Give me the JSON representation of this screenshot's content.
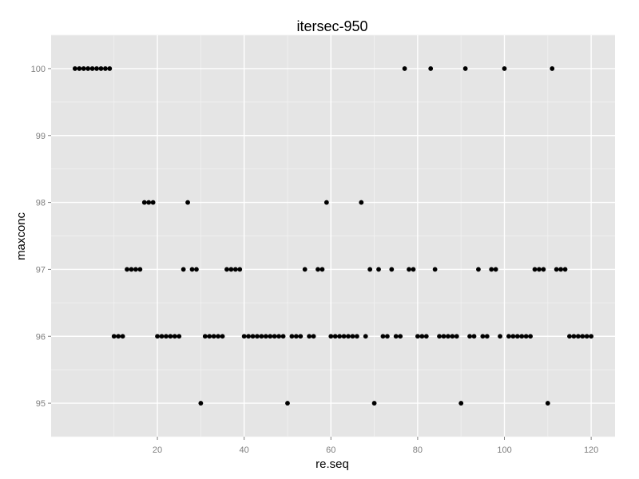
{
  "chart_data": {
    "type": "scatter",
    "title": "itersec-950",
    "xlabel": "re.seq",
    "ylabel": "maxconc",
    "xlim": [
      -4.5,
      125.5
    ],
    "ylim": [
      94.5,
      100.5
    ],
    "x_ticks": [
      20,
      40,
      60,
      80,
      100,
      120
    ],
    "y_ticks": [
      95,
      96,
      97,
      98,
      99,
      100
    ],
    "x_tick_labels": [
      "20",
      "40",
      "60",
      "80",
      "100",
      "120"
    ],
    "y_tick_labels": [
      "95",
      "96",
      "97",
      "98",
      "99",
      "100"
    ],
    "grid": true,
    "legend": "none",
    "colors": {
      "panel": "#e5e5e5",
      "grid_major": "#ffffff",
      "grid_minor": "#f2f2f2",
      "point": "#000000",
      "tick_text": "#7f7f7f"
    },
    "x": [
      1,
      2,
      3,
      4,
      5,
      6,
      7,
      8,
      9,
      10,
      11,
      12,
      13,
      14,
      15,
      16,
      17,
      18,
      19,
      20,
      21,
      22,
      23,
      24,
      25,
      26,
      27,
      28,
      29,
      30,
      31,
      32,
      33,
      34,
      35,
      36,
      37,
      38,
      39,
      40,
      41,
      42,
      43,
      44,
      45,
      46,
      47,
      48,
      49,
      50,
      51,
      52,
      53,
      54,
      55,
      56,
      57,
      58,
      59,
      60,
      61,
      62,
      63,
      64,
      65,
      66,
      67,
      68,
      69,
      70,
      71,
      72,
      73,
      74,
      75,
      76,
      77,
      78,
      79,
      80,
      81,
      82,
      83,
      84,
      85,
      86,
      87,
      88,
      89,
      90,
      91,
      92,
      93,
      94,
      95,
      96,
      97,
      98,
      99,
      100,
      101,
      102,
      103,
      104,
      105,
      106,
      107,
      108,
      109,
      110,
      111,
      112,
      113,
      114,
      115,
      116,
      117,
      118,
      119,
      120
    ],
    "y": [
      100,
      100,
      100,
      100,
      100,
      100,
      100,
      100,
      100,
      96,
      96,
      96,
      97,
      97,
      97,
      97,
      98,
      98,
      98,
      96,
      96,
      96,
      96,
      96,
      96,
      97,
      98,
      97,
      97,
      95,
      96,
      96,
      96,
      96,
      96,
      97,
      97,
      97,
      97,
      96,
      96,
      96,
      96,
      96,
      96,
      96,
      96,
      96,
      96,
      95,
      96,
      96,
      96,
      97,
      96,
      96,
      97,
      97,
      98,
      96,
      96,
      96,
      96,
      96,
      96,
      96,
      98,
      96,
      97,
      95,
      97,
      96,
      96,
      97,
      96,
      96,
      100,
      97,
      97,
      96,
      96,
      96,
      100,
      97,
      96,
      96,
      96,
      96,
      96,
      95,
      100,
      96,
      96,
      97,
      96,
      96,
      97,
      97,
      96,
      100,
      96,
      96,
      96,
      96,
      96,
      96,
      97,
      97,
      97,
      95,
      100,
      97,
      97,
      97,
      96,
      96,
      96,
      96,
      96,
      96
    ]
  }
}
